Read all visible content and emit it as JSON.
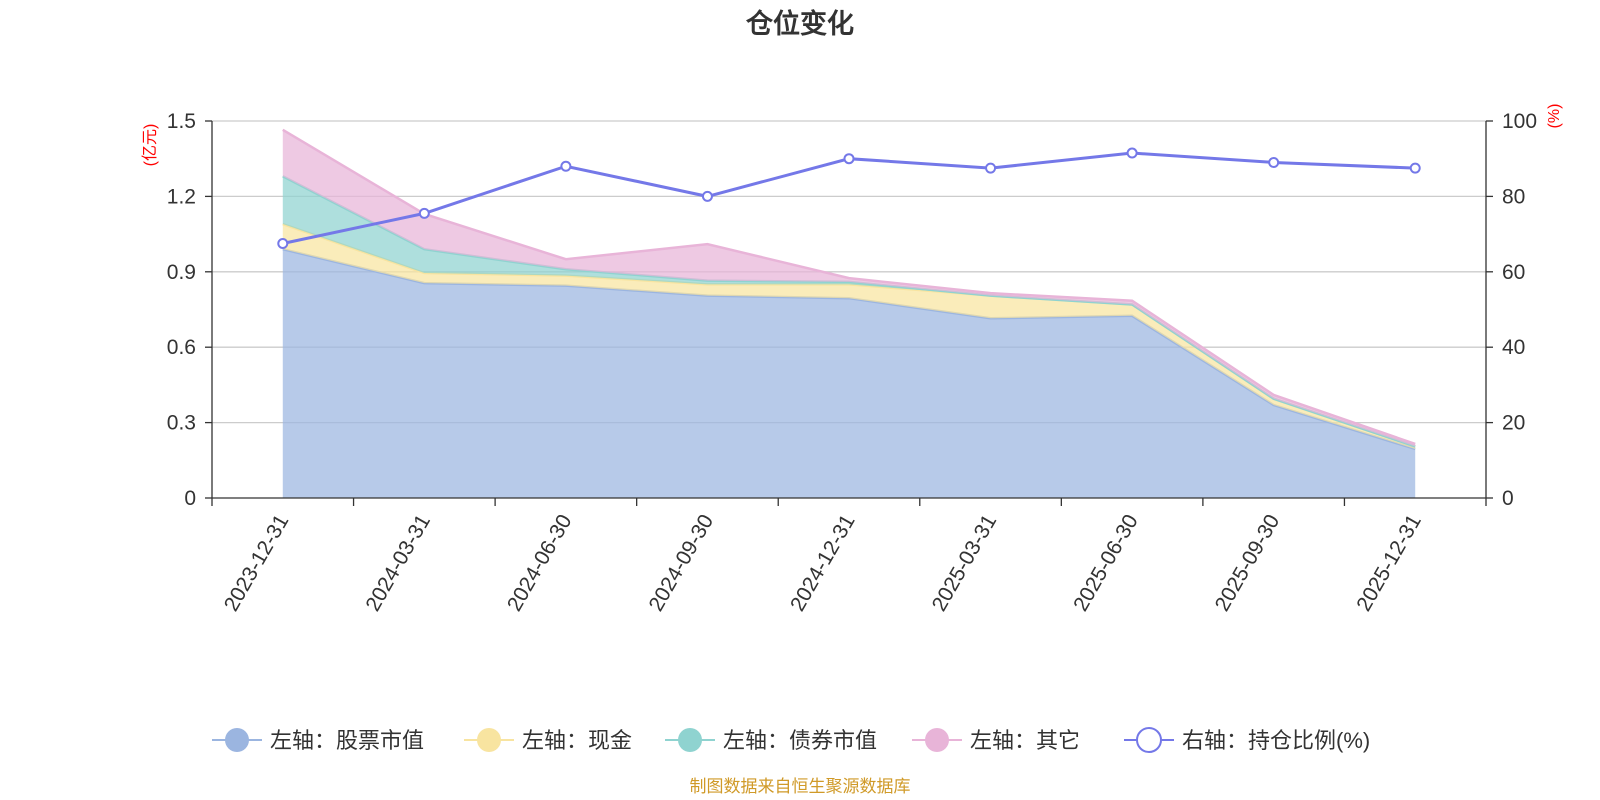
{
  "chart_data": {
    "type": "area",
    "title": "仓位变化",
    "left_axis_unit": "(亿元)",
    "right_axis_unit": "(%)",
    "categories": [
      "2023-12-31",
      "2024-03-31",
      "2024-06-30",
      "2024-09-30",
      "2024-12-31",
      "2025-03-31",
      "2025-06-30",
      "2025-09-30",
      "2025-12-31"
    ],
    "left_ylim": [
      0,
      1.5
    ],
    "left_ticks": [
      "0",
      "0.3",
      "0.6",
      "0.9",
      "1.2",
      "1.5"
    ],
    "right_ylim": [
      0,
      100
    ],
    "right_ticks": [
      "0",
      "20",
      "40",
      "60",
      "80",
      "100"
    ],
    "stacked": true,
    "grid": true,
    "legend_position": "bottom",
    "series": [
      {
        "name": "左轴：股票市值",
        "axis": "left",
        "kind": "area",
        "color": "#9bb5e0",
        "values": [
          0.99,
          0.855,
          0.845,
          0.805,
          0.795,
          0.715,
          0.725,
          0.37,
          0.195
        ]
      },
      {
        "name": "左轴：现金",
        "axis": "left",
        "kind": "area",
        "color": "#f8e4a0",
        "values": [
          0.1,
          0.04,
          0.04,
          0.045,
          0.055,
          0.09,
          0.045,
          0.025,
          0.01
        ]
      },
      {
        "name": "左轴：债券市值",
        "axis": "left",
        "kind": "area",
        "color": "#8fd3d0",
        "values": [
          0.19,
          0.095,
          0.025,
          0.015,
          0.01,
          0.0,
          0.0,
          0.0,
          0.0
        ]
      },
      {
        "name": "左轴：其它",
        "axis": "left",
        "kind": "area",
        "color": "#e8b4d8",
        "values": [
          0.185,
          0.14,
          0.04,
          0.145,
          0.015,
          0.01,
          0.015,
          0.015,
          0.01
        ]
      },
      {
        "name": "右轴：持仓比例(%)",
        "axis": "right",
        "kind": "line",
        "color": "#7478e8",
        "values": [
          67.5,
          75.5,
          88.0,
          80.0,
          90.0,
          87.5,
          91.5,
          89.0,
          87.5
        ]
      }
    ],
    "source_note": "制图数据来自恒生聚源数据库"
  }
}
